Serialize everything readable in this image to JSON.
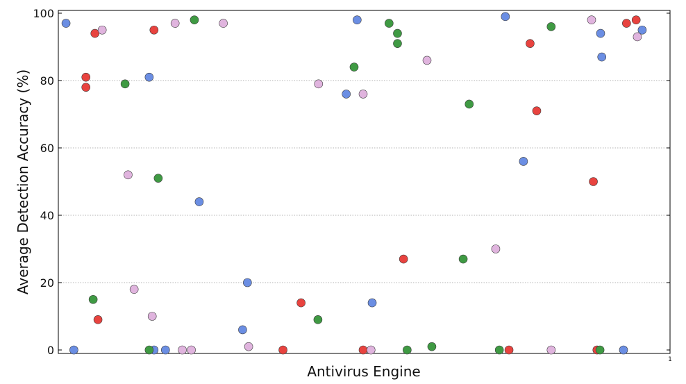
{
  "chart_data": {
    "type": "scatter",
    "xlabel": "Antivirus Engine",
    "ylabel": "Average Detection Accuracy (%)",
    "xlim": [
      0,
      1
    ],
    "ylim": [
      0,
      100
    ],
    "yticks": [
      "0",
      "20",
      "40",
      "60",
      "80",
      "100"
    ],
    "x_end_label": "1",
    "grid": "horizontal-dotted",
    "legend": "none",
    "series": [
      {
        "color": "#6b8ee3",
        "points": [
          {
            "x": 0.007,
            "y": 97
          },
          {
            "x": 0.02,
            "y": 0
          },
          {
            "x": 0.145,
            "y": 81
          },
          {
            "x": 0.153,
            "y": 0
          },
          {
            "x": 0.172,
            "y": 0
          },
          {
            "x": 0.228,
            "y": 44
          },
          {
            "x": 0.3,
            "y": 6
          },
          {
            "x": 0.308,
            "y": 20
          },
          {
            "x": 0.472,
            "y": 76
          },
          {
            "x": 0.49,
            "y": 98
          },
          {
            "x": 0.515,
            "y": 14
          },
          {
            "x": 0.736,
            "y": 99
          },
          {
            "x": 0.766,
            "y": 56
          },
          {
            "x": 0.894,
            "y": 94
          },
          {
            "x": 0.896,
            "y": 87
          },
          {
            "x": 0.932,
            "y": 0
          },
          {
            "x": 0.963,
            "y": 95
          }
        ]
      },
      {
        "color": "#e8433f",
        "points": [
          {
            "x": 0.04,
            "y": 81
          },
          {
            "x": 0.04,
            "y": 78
          },
          {
            "x": 0.055,
            "y": 94
          },
          {
            "x": 0.06,
            "y": 9
          },
          {
            "x": 0.153,
            "y": 95
          },
          {
            "x": 0.367,
            "y": 0
          },
          {
            "x": 0.397,
            "y": 14
          },
          {
            "x": 0.5,
            "y": 0
          },
          {
            "x": 0.567,
            "y": 27
          },
          {
            "x": 0.742,
            "y": 0
          },
          {
            "x": 0.777,
            "y": 91
          },
          {
            "x": 0.788,
            "y": 71
          },
          {
            "x": 0.882,
            "y": 50
          },
          {
            "x": 0.888,
            "y": 0
          },
          {
            "x": 0.937,
            "y": 97
          },
          {
            "x": 0.953,
            "y": 98
          }
        ]
      },
      {
        "color": "#3f9a43",
        "points": [
          {
            "x": 0.052,
            "y": 15
          },
          {
            "x": 0.105,
            "y": 79
          },
          {
            "x": 0.145,
            "y": 0
          },
          {
            "x": 0.16,
            "y": 51
          },
          {
            "x": 0.22,
            "y": 98
          },
          {
            "x": 0.425,
            "y": 9
          },
          {
            "x": 0.485,
            "y": 84
          },
          {
            "x": 0.543,
            "y": 97
          },
          {
            "x": 0.557,
            "y": 94
          },
          {
            "x": 0.557,
            "y": 91
          },
          {
            "x": 0.573,
            "y": 0
          },
          {
            "x": 0.614,
            "y": 1
          },
          {
            "x": 0.666,
            "y": 27
          },
          {
            "x": 0.676,
            "y": 73
          },
          {
            "x": 0.726,
            "y": 0
          },
          {
            "x": 0.812,
            "y": 96
          },
          {
            "x": 0.893,
            "y": 0
          }
        ]
      },
      {
        "color": "#e0b4de",
        "points": [
          {
            "x": 0.067,
            "y": 95
          },
          {
            "x": 0.11,
            "y": 52
          },
          {
            "x": 0.12,
            "y": 18
          },
          {
            "x": 0.15,
            "y": 10
          },
          {
            "x": 0.188,
            "y": 97
          },
          {
            "x": 0.2,
            "y": 0
          },
          {
            "x": 0.215,
            "y": 0
          },
          {
            "x": 0.268,
            "y": 97
          },
          {
            "x": 0.31,
            "y": 1
          },
          {
            "x": 0.426,
            "y": 79
          },
          {
            "x": 0.5,
            "y": 76
          },
          {
            "x": 0.513,
            "y": 0
          },
          {
            "x": 0.606,
            "y": 86
          },
          {
            "x": 0.72,
            "y": 30
          },
          {
            "x": 0.812,
            "y": 0
          },
          {
            "x": 0.879,
            "y": 98
          },
          {
            "x": 0.955,
            "y": 93
          }
        ]
      }
    ]
  }
}
